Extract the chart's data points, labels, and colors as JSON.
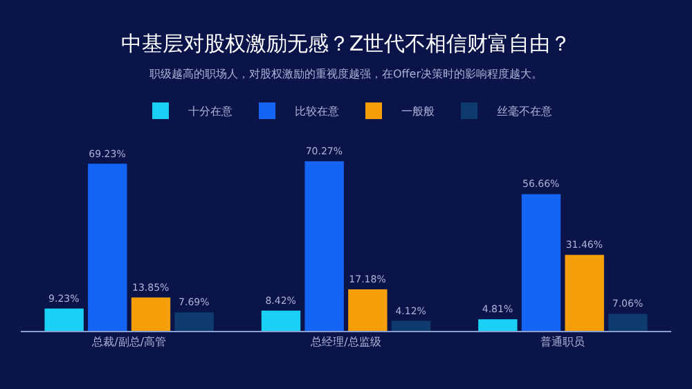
{
  "chart_data": {
    "type": "bar",
    "title": "中基层对股权激励无感？Z世代不相信财富自由？",
    "subtitle": "职级越高的职场人，对股权激励的重视度越强，在Offer决策时的影响程度越大。",
    "categories": [
      "总裁/副总/高管",
      "总经理/总监级",
      "普通职员"
    ],
    "series": [
      {
        "name": "十分在意",
        "color": "#1ad0f5",
        "values": [
          9.23,
          8.42,
          4.81
        ],
        "value_labels": [
          "9.23%",
          "8.42%",
          "4.81%"
        ]
      },
      {
        "name": "比较在意",
        "color": "#1565f5",
        "values": [
          69.23,
          70.27,
          56.66
        ],
        "value_labels": [
          "69.23%",
          "70.27%",
          "56.66%"
        ]
      },
      {
        "name": "一般般",
        "color": "#f5a00a",
        "values": [
          13.85,
          17.18,
          31.46
        ],
        "value_labels": [
          "13.85%",
          "17.18%",
          "31.46%"
        ]
      },
      {
        "name": "丝毫不在意",
        "color": "#0e3a6e",
        "values": [
          7.69,
          4.12,
          7.06
        ],
        "value_labels": [
          "7.69%",
          "4.12%",
          "7.06%"
        ]
      }
    ],
    "legend": "top"
  }
}
